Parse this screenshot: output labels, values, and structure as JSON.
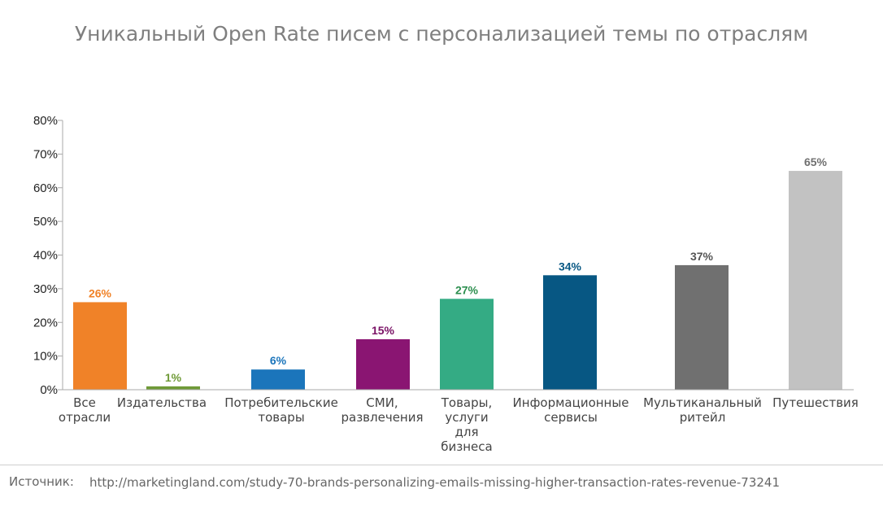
{
  "chart_data": {
    "type": "bar",
    "title": "Уникальный Open Rate писем с персонализацией темы по отраслям",
    "xlabel": "",
    "ylabel": "",
    "ylim": [
      0,
      80
    ],
    "y_ticks": [
      "0%",
      "10%",
      "20%",
      "30%",
      "40%",
      "50%",
      "60%",
      "70%",
      "80%"
    ],
    "categories": [
      [
        "Все",
        "отрасли"
      ],
      [
        "Издательства"
      ],
      [
        "Потребительские",
        "товары"
      ],
      [
        "СМИ,",
        "развлечения"
      ],
      [
        "Товары,",
        "услуги",
        "для",
        "бизнеса"
      ],
      [
        "Информационные",
        "сервисы"
      ],
      [
        "Мультиканальный",
        "ритейл"
      ],
      [
        "Путешествия"
      ]
    ],
    "values": [
      26,
      1,
      6,
      15,
      27,
      34,
      37,
      65
    ],
    "value_labels": [
      "26%",
      "1%",
      "6%",
      "15%",
      "27%",
      "34%",
      "37%",
      "65%"
    ],
    "colors": [
      "#f08228",
      "#6f9a37",
      "#1b75bb",
      "#8a1572",
      "#34ab84",
      "#075783",
      "#707070",
      "#c2c2c2"
    ],
    "label_colors": [
      "#f08228",
      "#6f9a37",
      "#1b75bb",
      "#7a1266",
      "#2d8f4f",
      "#075783",
      "#555555",
      "#707070"
    ]
  },
  "source": {
    "label": "Источник:",
    "url": "http://marketingland.com/study-70-brands-personalizing-emails-missing-higher-transaction-rates-revenue-73241"
  }
}
